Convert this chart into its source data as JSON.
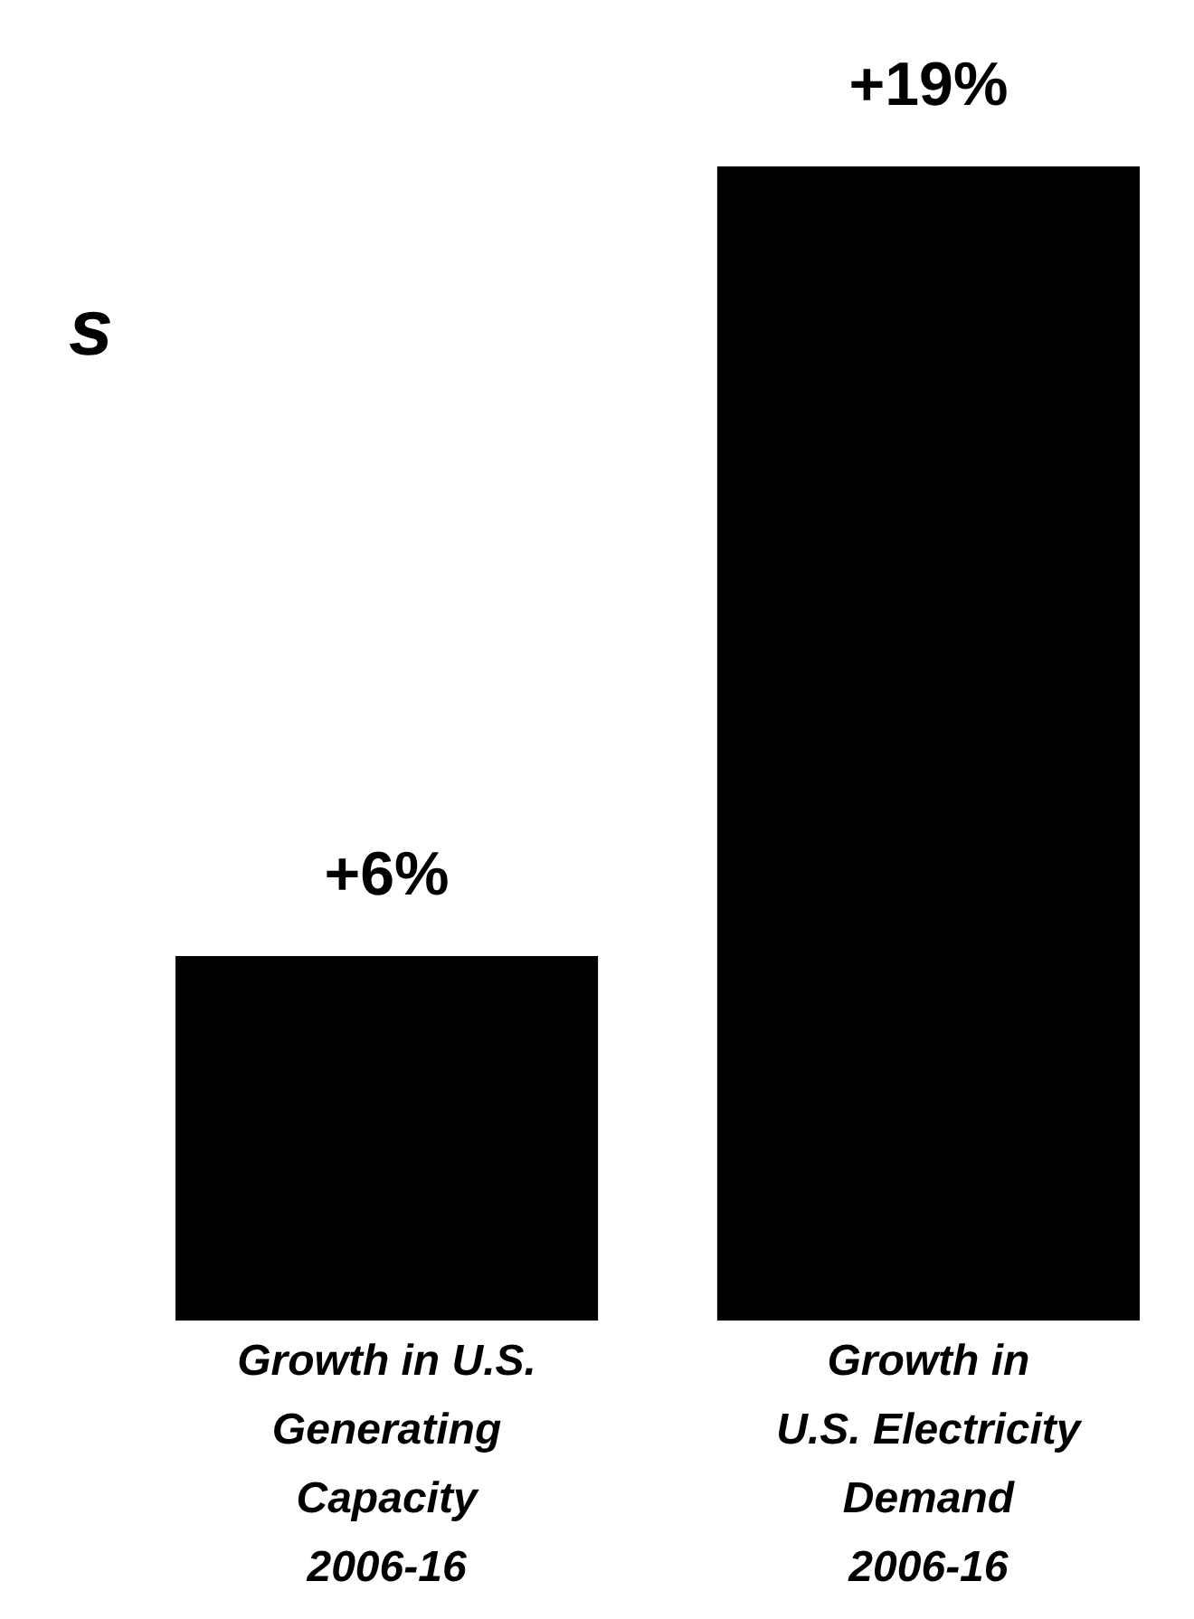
{
  "chart_data": {
    "type": "bar",
    "categories": [
      "Growth in U.S.\nGenerating\nCapacity\n2006-16",
      "Growth in\nU.S. Electricity\nDemand\n2006-16"
    ],
    "values": [
      6,
      19
    ],
    "value_labels": [
      "+6%",
      "+19%"
    ],
    "color": "#000000",
    "annotations": [
      "s"
    ]
  }
}
